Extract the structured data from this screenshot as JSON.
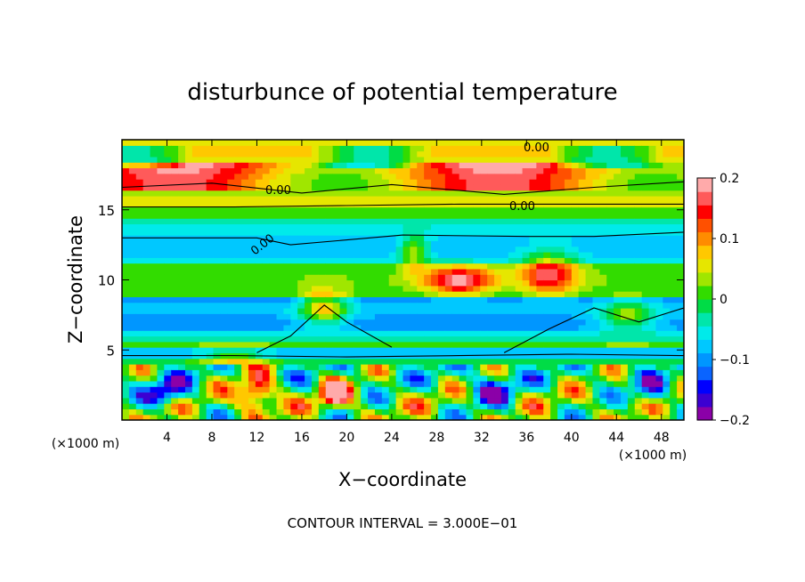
{
  "chart_data": {
    "type": "heatmap",
    "title": "disturbunce of potential temperature",
    "xlabel": "X−coordinate",
    "ylabel": "Z−coordinate",
    "x_unit": "(×1000 m)",
    "y_unit": "(×1000 m)",
    "xlim": [
      0,
      50
    ],
    "ylim": [
      0,
      20
    ],
    "x_ticks": [
      4,
      8,
      12,
      16,
      20,
      24,
      28,
      32,
      36,
      40,
      44,
      48
    ],
    "y_ticks": [
      5,
      10,
      15
    ],
    "colorbar": {
      "ticks": [
        "0.2",
        "0.1",
        "0",
        "−0.1",
        "−0.2"
      ],
      "tick_values": [
        0.2,
        0.1,
        0,
        -0.1,
        -0.2
      ],
      "range": [
        -0.2,
        0.2
      ],
      "colors": [
        "#8b00a8",
        "#3c00d2",
        "#0000ff",
        "#0a64ff",
        "#0096ff",
        "#00c8ff",
        "#00eaea",
        "#00e6aa",
        "#00dc46",
        "#32dc00",
        "#a0e600",
        "#e6e600",
        "#ffc800",
        "#ff8c00",
        "#ff5000",
        "#ff0000",
        "#ff5a5a",
        "#ffaaaa"
      ]
    },
    "contour_labels": [
      "0.00",
      "0.00",
      "0.00",
      "0.00"
    ],
    "contour_interval": "CONTOUR INTERVAL = 3.000E−01",
    "grid": false
  }
}
